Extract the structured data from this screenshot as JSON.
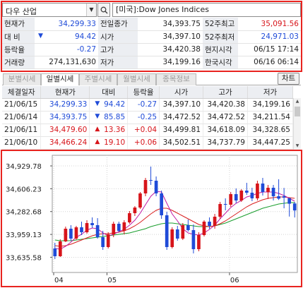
{
  "search": {
    "market_select": "다우 산업",
    "index_name": "[미국]:Dow Jones Indices"
  },
  "quote": {
    "rows": [
      {
        "l1": "현재가",
        "v1": "34,299.33",
        "c1": "blue",
        "l2": "전일종가",
        "v2": "34,393.75",
        "c2": "dark",
        "l3": "52주최고",
        "v3": "35,091.56",
        "c3": "red"
      },
      {
        "l1": "대  비",
        "v1": "94.42",
        "c1": "blue",
        "arrow": "▼",
        "l2": "시가",
        "v2": "34,397.10",
        "c2": "dark",
        "l3": "52주최저",
        "v3": "24,971.03",
        "c3": "blue"
      },
      {
        "l1": "등락율",
        "v1": "-0.27",
        "c1": "blue",
        "l2": "고가",
        "v2": "34,420.38",
        "c2": "dark",
        "l3": "현지시각",
        "v3": "06/15 17:14",
        "c3": "dark"
      },
      {
        "l1": "거래량",
        "v1": "274,131,630",
        "c1": "dark",
        "l2": "저가",
        "v2": "34,199.16",
        "c2": "dark",
        "l3": "한국시각",
        "v3": "06/16 06:14",
        "c3": "dark"
      }
    ]
  },
  "tabs": [
    {
      "label": "분별시세",
      "active": false
    },
    {
      "label": "일별시세",
      "active": true
    },
    {
      "label": "주별시세",
      "active": false
    },
    {
      "label": "월별시세",
      "active": false
    },
    {
      "label": "종목정보",
      "active": false
    }
  ],
  "chart_button": "차트",
  "history": {
    "headers": [
      "체결일자",
      "현재가",
      "대비",
      "등락율",
      "시가",
      "고가",
      "저가"
    ],
    "rows": [
      {
        "date": "21/06/15",
        "price": "34,299.33",
        "dir": "down",
        "arrow": "▼",
        "change": "94.42",
        "rate": "-0.27",
        "open": "34,397.10",
        "high": "34,420.38",
        "low": "34,199.16"
      },
      {
        "date": "21/06/14",
        "price": "34,393.75",
        "dir": "down",
        "arrow": "▼",
        "change": "85.85",
        "rate": "-0.25",
        "open": "34,472.52",
        "high": "34,472.52",
        "low": "34,211.54"
      },
      {
        "date": "21/06/11",
        "price": "34,479.60",
        "dir": "up",
        "arrow": "▲",
        "change": "13.36",
        "rate": "+0.04",
        "open": "34,499.81",
        "high": "34,618.09",
        "low": "34,328.65"
      },
      {
        "date": "21/06/10",
        "price": "34,466.24",
        "dir": "up",
        "arrow": "▲",
        "change": "19.10",
        "rate": "+0.06",
        "open": "34,502.51",
        "high": "34,737.79",
        "low": "34,447.25"
      }
    ]
  },
  "colors": {
    "up": "#d7141a",
    "down": "#1f4bd8",
    "ma_short": "#c01aa3",
    "ma_mid": "#d92020",
    "ma_long": "#1a9e2e",
    "highlight_border": "#e8231f"
  },
  "chart_data": {
    "type": "candlestick",
    "y_ticks": [
      "34,929.78",
      "34,606.23",
      "34,282.68",
      "33,959.13",
      "33,635.58"
    ],
    "y_tick_values": [
      34929.78,
      34606.23,
      34282.68,
      33959.13,
      33635.58
    ],
    "ylim": [
      33420,
      35080
    ],
    "x_ticks": [
      {
        "label": "04",
        "index": 0
      },
      {
        "label": "05",
        "index": 10
      },
      {
        "label": "06",
        "index": 33
      }
    ],
    "candles": [
      {
        "o": 33760,
        "h": 33840,
        "l": 33610,
        "c": 33650
      },
      {
        "o": 33650,
        "h": 33890,
        "l": 33640,
        "c": 33860
      },
      {
        "o": 33860,
        "h": 34070,
        "l": 33850,
        "c": 34040
      },
      {
        "o": 34040,
        "h": 34090,
        "l": 33870,
        "c": 33900
      },
      {
        "o": 33900,
        "h": 34080,
        "l": 33880,
        "c": 34060
      },
      {
        "o": 34060,
        "h": 34140,
        "l": 33950,
        "c": 33990
      },
      {
        "o": 33990,
        "h": 34160,
        "l": 33970,
        "c": 34120
      },
      {
        "o": 34120,
        "h": 34200,
        "l": 34050,
        "c": 34090
      },
      {
        "o": 34090,
        "h": 34190,
        "l": 33900,
        "c": 33920
      },
      {
        "o": 33920,
        "h": 34010,
        "l": 33740,
        "c": 33780
      },
      {
        "o": 33780,
        "h": 33990,
        "l": 33760,
        "c": 33960
      },
      {
        "o": 33960,
        "h": 34140,
        "l": 33920,
        "c": 34110
      },
      {
        "o": 34110,
        "h": 34140,
        "l": 33990,
        "c": 34010
      },
      {
        "o": 34010,
        "h": 34160,
        "l": 33960,
        "c": 34130
      },
      {
        "o": 34130,
        "h": 34290,
        "l": 34110,
        "c": 34260
      },
      {
        "o": 34260,
        "h": 34360,
        "l": 34220,
        "c": 34340
      },
      {
        "o": 34340,
        "h": 34560,
        "l": 34320,
        "c": 34540
      },
      {
        "o": 34540,
        "h": 34760,
        "l": 34500,
        "c": 34730
      },
      {
        "o": 34730,
        "h": 34920,
        "l": 34660,
        "c": 34720
      },
      {
        "o": 34720,
        "h": 34780,
        "l": 34500,
        "c": 34540
      },
      {
        "o": 34540,
        "h": 34580,
        "l": 34180,
        "c": 34230
      },
      {
        "o": 34230,
        "h": 34280,
        "l": 33740,
        "c": 33780
      },
      {
        "o": 33780,
        "h": 34060,
        "l": 33760,
        "c": 34030
      },
      {
        "o": 34030,
        "h": 34080,
        "l": 33870,
        "c": 33900
      },
      {
        "o": 33900,
        "h": 34120,
        "l": 33880,
        "c": 34090
      },
      {
        "o": 34090,
        "h": 34170,
        "l": 34000,
        "c": 34020
      },
      {
        "o": 34020,
        "h": 34100,
        "l": 33690,
        "c": 33750
      },
      {
        "o": 33750,
        "h": 33990,
        "l": 33720,
        "c": 33950
      },
      {
        "o": 33950,
        "h": 34160,
        "l": 33930,
        "c": 34140
      },
      {
        "o": 34140,
        "h": 34200,
        "l": 34040,
        "c": 34080
      },
      {
        "o": 34080,
        "h": 34250,
        "l": 34040,
        "c": 34210
      },
      {
        "o": 34210,
        "h": 34420,
        "l": 34180,
        "c": 34390
      },
      {
        "o": 34390,
        "h": 34470,
        "l": 34300,
        "c": 34380
      },
      {
        "o": 34380,
        "h": 34560,
        "l": 34350,
        "c": 34530
      },
      {
        "o": 34530,
        "h": 34610,
        "l": 34400,
        "c": 34440
      },
      {
        "o": 34440,
        "h": 34600,
        "l": 34420,
        "c": 34580
      },
      {
        "o": 34580,
        "h": 34690,
        "l": 34520,
        "c": 34550
      },
      {
        "o": 34550,
        "h": 34620,
        "l": 34430,
        "c": 34470
      },
      {
        "o": 34470,
        "h": 34720,
        "l": 34440,
        "c": 34680
      },
      {
        "o": 34680,
        "h": 34760,
        "l": 34510,
        "c": 34560
      },
      {
        "o": 34560,
        "h": 34660,
        "l": 34460,
        "c": 34620
      },
      {
        "o": 34620,
        "h": 34660,
        "l": 34440,
        "c": 34500
      },
      {
        "o": 34500,
        "h": 34740,
        "l": 34447,
        "c": 34466
      },
      {
        "o": 34500,
        "h": 34618,
        "l": 34329,
        "c": 34480
      },
      {
        "o": 34473,
        "h": 34473,
        "l": 34212,
        "c": 34394
      },
      {
        "o": 34397,
        "h": 34420,
        "l": 34199,
        "c": 34299
      }
    ],
    "ma_short": [
      33760,
      33750,
      33790,
      33850,
      33920,
      33960,
      34020,
      34050,
      34040,
      33980,
      33940,
      33960,
      34000,
      34030,
      34090,
      34160,
      34260,
      34380,
      34500,
      34570,
      34560,
      34400,
      34250,
      34150,
      34040,
      33980,
      33960,
      33950,
      33980,
      34030,
      34090,
      34180,
      34260,
      34340,
      34400,
      34440,
      34490,
      34510,
      34540,
      34560,
      34560,
      34560,
      34540,
      34510,
      34470,
      34430
    ],
    "ma_mid": [
      33800,
      33790,
      33800,
      33820,
      33850,
      33880,
      33910,
      33940,
      33960,
      33970,
      33970,
      33980,
      33990,
      34010,
      34040,
      34080,
      34130,
      34190,
      34250,
      34300,
      34330,
      34330,
      34300,
      34260,
      34220,
      34180,
      34140,
      34100,
      34080,
      34070,
      34080,
      34110,
      34150,
      34200,
      34250,
      34300,
      34350,
      34390,
      34420,
      34450,
      34470,
      34480,
      34490,
      34490,
      34480,
      34470
    ],
    "ma_long": [
      33880,
      33870,
      33870,
      33870,
      33880,
      33890,
      33900,
      33910,
      33920,
      33930,
      33940,
      33950,
      33960,
      33970,
      33980,
      34000,
      34020,
      34040,
      34070,
      34090,
      34110,
      34120,
      34120,
      34110,
      34100,
      34090,
      34080,
      34070,
      34070,
      34070,
      34080,
      34100,
      34120,
      34150,
      34180,
      34210,
      34240,
      34270,
      34300,
      34330,
      34350,
      34370,
      34390,
      34400,
      34410,
      34410
    ]
  }
}
